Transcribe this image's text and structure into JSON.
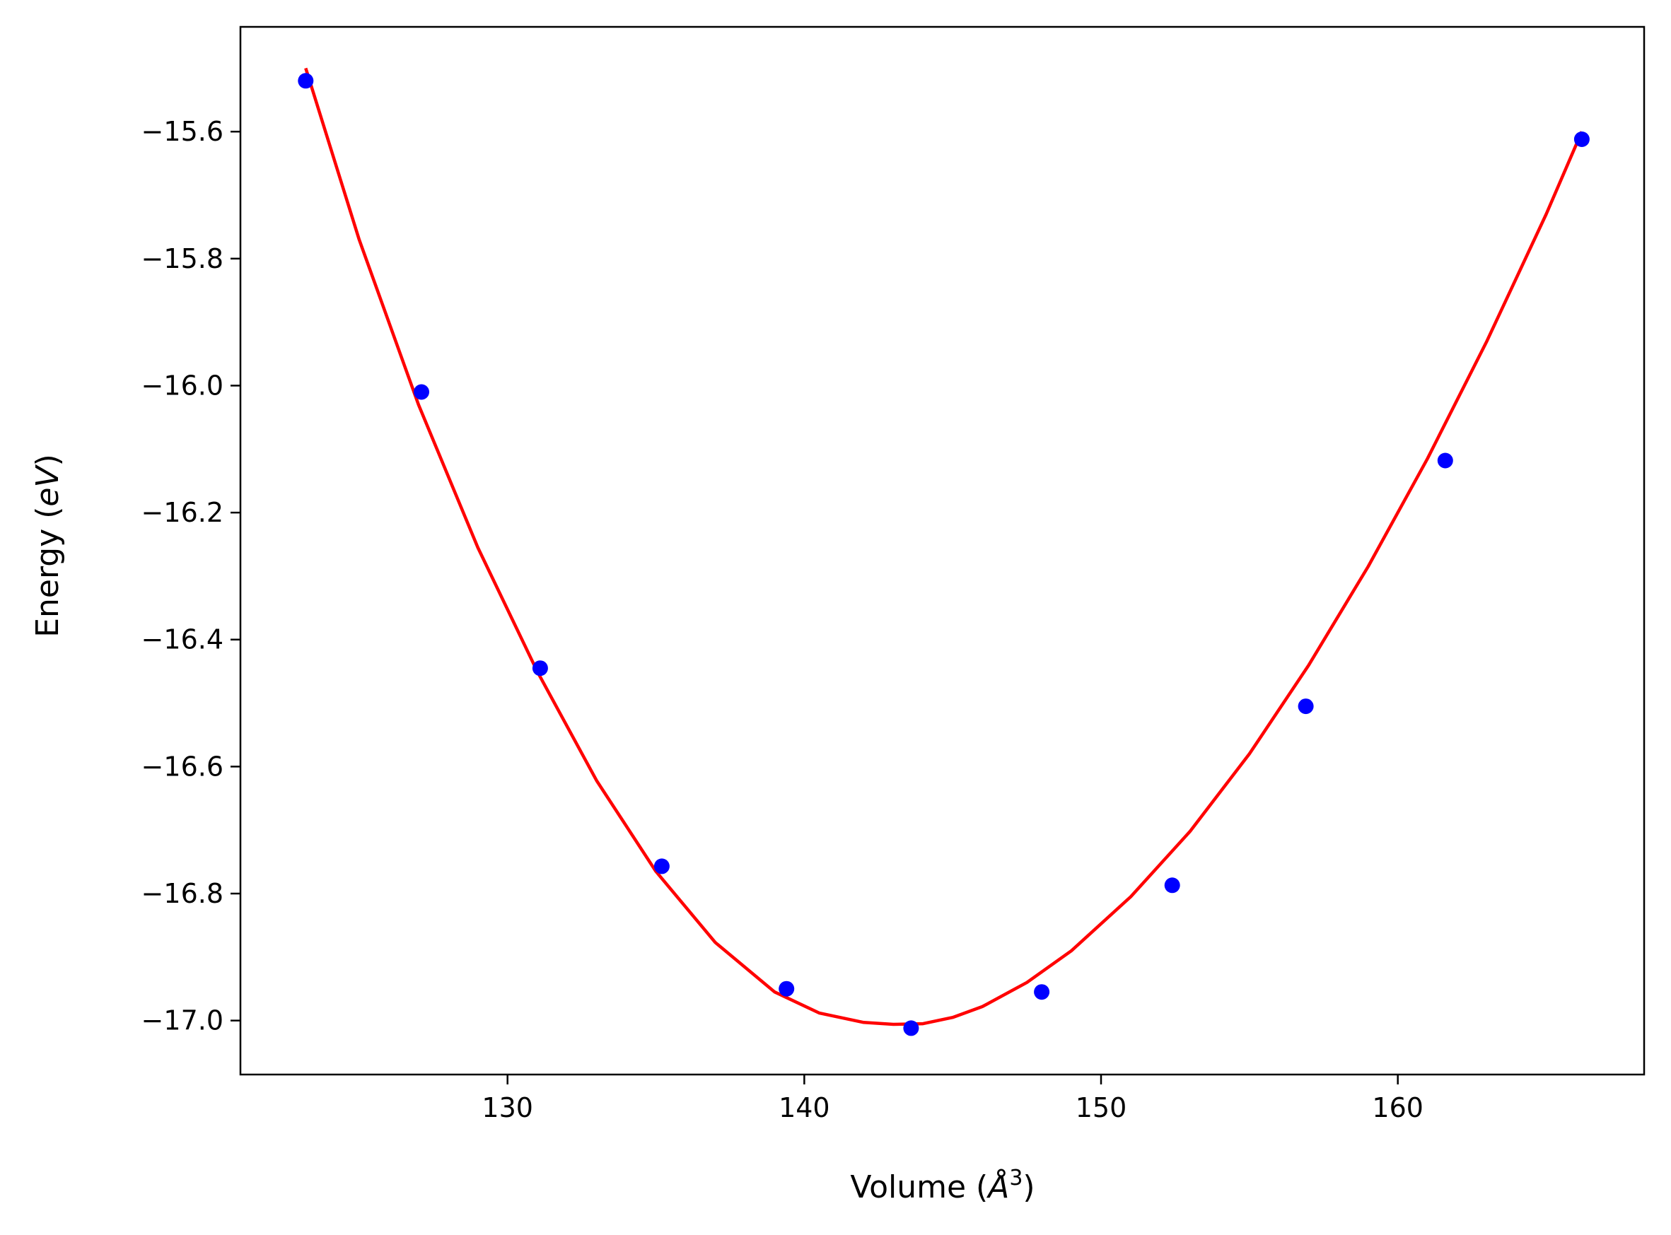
{
  "chart_data": {
    "type": "scatter",
    "title": "",
    "xlabel": {
      "main": "Volume (",
      "unit": "Å",
      "sup": "3",
      "close": ")"
    },
    "ylabel": {
      "main": "Energy (",
      "unit": "eV",
      "close": ")"
    },
    "xlim": [
      121,
      168.3
    ],
    "ylim": [
      -17.085,
      -15.435
    ],
    "x_ticks": [
      130,
      140,
      150,
      160
    ],
    "x_tick_labels": [
      "130",
      "140",
      "150",
      "160"
    ],
    "y_ticks": [
      -15.6,
      -15.8,
      -16.0,
      -16.2,
      -16.4,
      -16.6,
      -16.8,
      -17.0
    ],
    "y_tick_labels": [
      "−15.6",
      "−15.8",
      "−16.0",
      "−16.2",
      "−16.4",
      "−16.6",
      "−16.8",
      "−17.0"
    ],
    "grid": false,
    "series": [
      {
        "kind": "points",
        "color": "#0000ff",
        "x": [
          123.2,
          127.1,
          131.1,
          135.2,
          139.4,
          143.6,
          148.0,
          152.4,
          156.9,
          161.6,
          166.2
        ],
        "y": [
          -15.52,
          -16.01,
          -16.445,
          -16.757,
          -16.95,
          -17.012,
          -16.955,
          -16.787,
          -16.505,
          -16.118,
          -15.612
        ]
      },
      {
        "kind": "fit-curve",
        "color": "#ff0000",
        "x": [
          123.2,
          125.0,
          127.0,
          129.0,
          131.0,
          133.0,
          135.0,
          137.0,
          139.0,
          140.5,
          142.0,
          143.0,
          144.0,
          145.0,
          146.0,
          147.5,
          149.0,
          151.0,
          153.0,
          155.0,
          157.0,
          159.0,
          161.0,
          163.0,
          165.0,
          166.2
        ],
        "y": [
          -15.5,
          -15.77,
          -16.03,
          -16.255,
          -16.45,
          -16.622,
          -16.765,
          -16.877,
          -16.955,
          -16.988,
          -17.003,
          -17.006,
          -17.005,
          -16.995,
          -16.978,
          -16.94,
          -16.89,
          -16.805,
          -16.702,
          -16.58,
          -16.44,
          -16.285,
          -16.115,
          -15.93,
          -15.73,
          -15.6
        ]
      }
    ]
  }
}
